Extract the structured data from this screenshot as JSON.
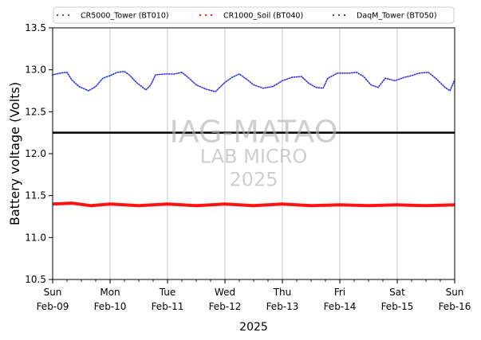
{
  "chart_data": {
    "type": "line",
    "xlabel": "2025",
    "ylabel": "Battery voltage (Volts)",
    "ylim": [
      10.5,
      13.5
    ],
    "yticks": [
      10.5,
      11.0,
      11.5,
      12.0,
      12.5,
      13.0,
      13.5
    ],
    "xlim": [
      "2025-02-09",
      "2025-02-16"
    ],
    "xticks": [
      {
        "date": "2025-02-09",
        "day": "Sun",
        "label": "Feb-09"
      },
      {
        "date": "2025-02-10",
        "day": "Mon",
        "label": "Feb-10"
      },
      {
        "date": "2025-02-11",
        "day": "Tue",
        "label": "Feb-11"
      },
      {
        "date": "2025-02-12",
        "day": "Wed",
        "label": "Feb-12"
      },
      {
        "date": "2025-02-13",
        "day": "Thu",
        "label": "Feb-13"
      },
      {
        "date": "2025-02-14",
        "day": "Fri",
        "label": "Feb-14"
      },
      {
        "date": "2025-02-15",
        "day": "Sat",
        "label": "Feb-15"
      },
      {
        "date": "2025-02-16",
        "day": "Sun",
        "label": "Feb-16"
      }
    ],
    "grid": "vertical",
    "legend_position": "top",
    "reference_line": {
      "y": 12.25,
      "color": "#000000"
    },
    "watermark": {
      "line1": "IAG-MATAO",
      "line2": "LAB MICRO",
      "line3": "2025"
    },
    "series": [
      {
        "name": "CR5000_Tower (BT010)",
        "color": "#3333dd",
        "points": [
          [
            "2025-02-09 00:00",
            12.94
          ],
          [
            "2025-02-09 03:00",
            12.96
          ],
          [
            "2025-02-09 06:00",
            12.97
          ],
          [
            "2025-02-09 08:00",
            12.88
          ],
          [
            "2025-02-09 11:00",
            12.8
          ],
          [
            "2025-02-09 15:00",
            12.75
          ],
          [
            "2025-02-09 18:00",
            12.8
          ],
          [
            "2025-02-09 21:00",
            12.9
          ],
          [
            "2025-02-10 00:00",
            12.93
          ],
          [
            "2025-02-10 03:00",
            12.97
          ],
          [
            "2025-02-10 06:00",
            12.98
          ],
          [
            "2025-02-10 08:00",
            12.94
          ],
          [
            "2025-02-10 11:00",
            12.85
          ],
          [
            "2025-02-10 15:00",
            12.76
          ],
          [
            "2025-02-10 17:00",
            12.82
          ],
          [
            "2025-02-10 19:00",
            12.94
          ],
          [
            "2025-02-10 23:00",
            12.95
          ],
          [
            "2025-02-11 03:00",
            12.95
          ],
          [
            "2025-02-11 06:00",
            12.97
          ],
          [
            "2025-02-11 09:00",
            12.9
          ],
          [
            "2025-02-11 12:00",
            12.82
          ],
          [
            "2025-02-11 16:00",
            12.77
          ],
          [
            "2025-02-11 20:00",
            12.74
          ],
          [
            "2025-02-12 00:00",
            12.85
          ],
          [
            "2025-02-12 03:00",
            12.91
          ],
          [
            "2025-02-12 06:00",
            12.95
          ],
          [
            "2025-02-12 09:00",
            12.89
          ],
          [
            "2025-02-12 12:00",
            12.82
          ],
          [
            "2025-02-12 16:00",
            12.78
          ],
          [
            "2025-02-12 20:00",
            12.8
          ],
          [
            "2025-02-13 00:00",
            12.87
          ],
          [
            "2025-02-13 04:00",
            12.91
          ],
          [
            "2025-02-13 08:00",
            12.92
          ],
          [
            "2025-02-13 11:00",
            12.84
          ],
          [
            "2025-02-13 14:00",
            12.79
          ],
          [
            "2025-02-13 17:00",
            12.78
          ],
          [
            "2025-02-13 19:00",
            12.9
          ],
          [
            "2025-02-13 23:00",
            12.96
          ],
          [
            "2025-02-14 04:00",
            12.96
          ],
          [
            "2025-02-14 07:00",
            12.97
          ],
          [
            "2025-02-14 10:00",
            12.92
          ],
          [
            "2025-02-14 13:00",
            12.82
          ],
          [
            "2025-02-14 16:00",
            12.79
          ],
          [
            "2025-02-14 19:00",
            12.9
          ],
          [
            "2025-02-14 23:00",
            12.87
          ],
          [
            "2025-02-15 03:00",
            12.91
          ],
          [
            "2025-02-15 06:00",
            12.93
          ],
          [
            "2025-02-15 09:00",
            12.96
          ],
          [
            "2025-02-15 13:00",
            12.97
          ],
          [
            "2025-02-15 16:00",
            12.9
          ],
          [
            "2025-02-15 20:00",
            12.79
          ],
          [
            "2025-02-15 22:00",
            12.75
          ],
          [
            "2025-02-16 00:00",
            12.88
          ]
        ]
      },
      {
        "name": "CR1000_Soil (BT040)",
        "color": "#ff0000",
        "points": [
          [
            "2025-02-09 00:00",
            11.4
          ],
          [
            "2025-02-09 08:00",
            11.41
          ],
          [
            "2025-02-09 16:00",
            11.38
          ],
          [
            "2025-02-10 00:00",
            11.4
          ],
          [
            "2025-02-10 12:00",
            11.38
          ],
          [
            "2025-02-11 00:00",
            11.4
          ],
          [
            "2025-02-11 12:00",
            11.38
          ],
          [
            "2025-02-12 00:00",
            11.4
          ],
          [
            "2025-02-12 12:00",
            11.38
          ],
          [
            "2025-02-13 00:00",
            11.4
          ],
          [
            "2025-02-13 12:00",
            11.38
          ],
          [
            "2025-02-14 00:00",
            11.39
          ],
          [
            "2025-02-14 12:00",
            11.38
          ],
          [
            "2025-02-15 00:00",
            11.39
          ],
          [
            "2025-02-15 12:00",
            11.38
          ],
          [
            "2025-02-16 00:00",
            11.39
          ]
        ]
      },
      {
        "name": "DaqM_Tower (BT050)",
        "color": "#333333",
        "points": []
      }
    ]
  }
}
